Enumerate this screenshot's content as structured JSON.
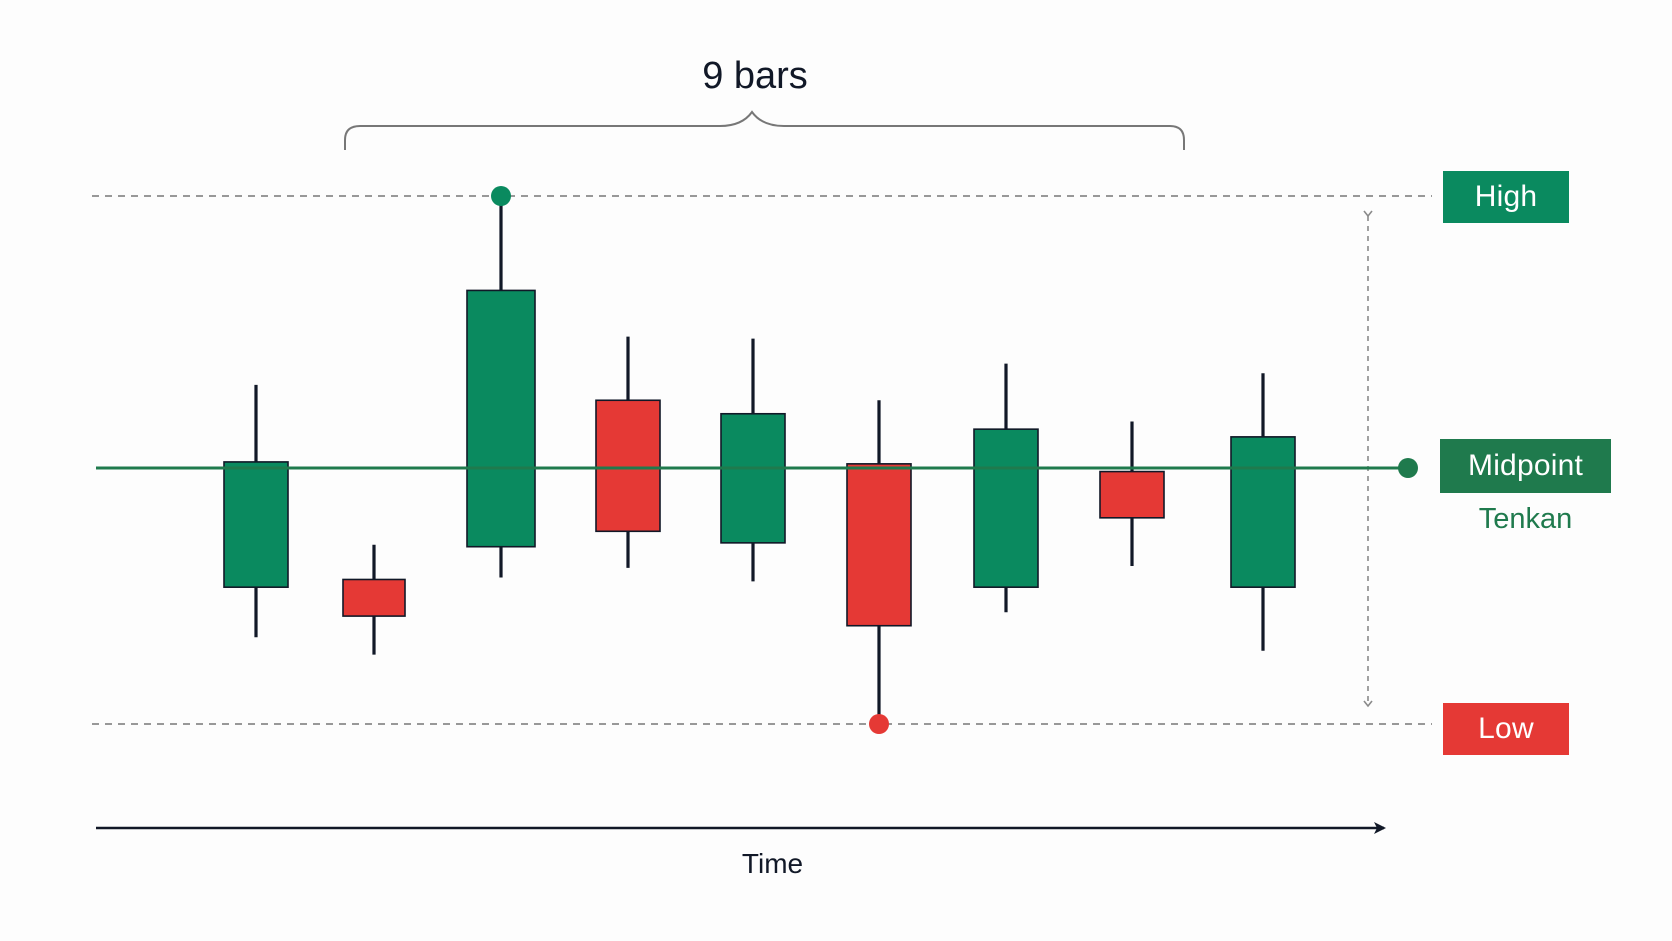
{
  "colors": {
    "bull": "#0a8a5f",
    "bear": "#e53935",
    "midline": "#1f7a4d",
    "text": "#111827",
    "wick": "#111827",
    "guide": "#8a8a8a"
  },
  "bracket": {
    "label": "9 bars"
  },
  "levels": {
    "high_label": "High",
    "low_label": "Low",
    "mid_label": "Midpoint",
    "mid_sublabel": "Tenkan"
  },
  "axis": {
    "time_label": "Time"
  },
  "diagram_data": {
    "candles": [
      {
        "direction": "bull",
        "open": 0.35,
        "close": 1.0,
        "high": 1.4,
        "low": 0.09
      },
      {
        "direction": "bear",
        "open": 0.39,
        "close": 0.2,
        "high": 0.57,
        "low": 0.0
      },
      {
        "direction": "bull",
        "open": 0.56,
        "close": 1.89,
        "high": 2.38,
        "low": 0.4
      },
      {
        "direction": "bear",
        "open": 1.32,
        "close": 0.64,
        "high": 1.65,
        "low": 0.45
      },
      {
        "direction": "bull",
        "open": 0.58,
        "close": 1.25,
        "high": 1.64,
        "low": 0.38
      },
      {
        "direction": "bear",
        "open": 0.99,
        "close": 0.15,
        "high": 1.32,
        "low": -0.36
      },
      {
        "direction": "bull",
        "open": 0.35,
        "close": 1.17,
        "high": 1.51,
        "low": 0.22
      },
      {
        "direction": "bear",
        "open": 0.95,
        "close": 0.71,
        "high": 1.21,
        "low": 0.46
      },
      {
        "direction": "bull",
        "open": 0.35,
        "close": 1.13,
        "high": 1.46,
        "low": 0.02
      }
    ],
    "period_high": 2.38,
    "period_low": -0.36,
    "midpoint": 1.01,
    "high_marker_candle": 3,
    "low_marker_candle": 6
  }
}
